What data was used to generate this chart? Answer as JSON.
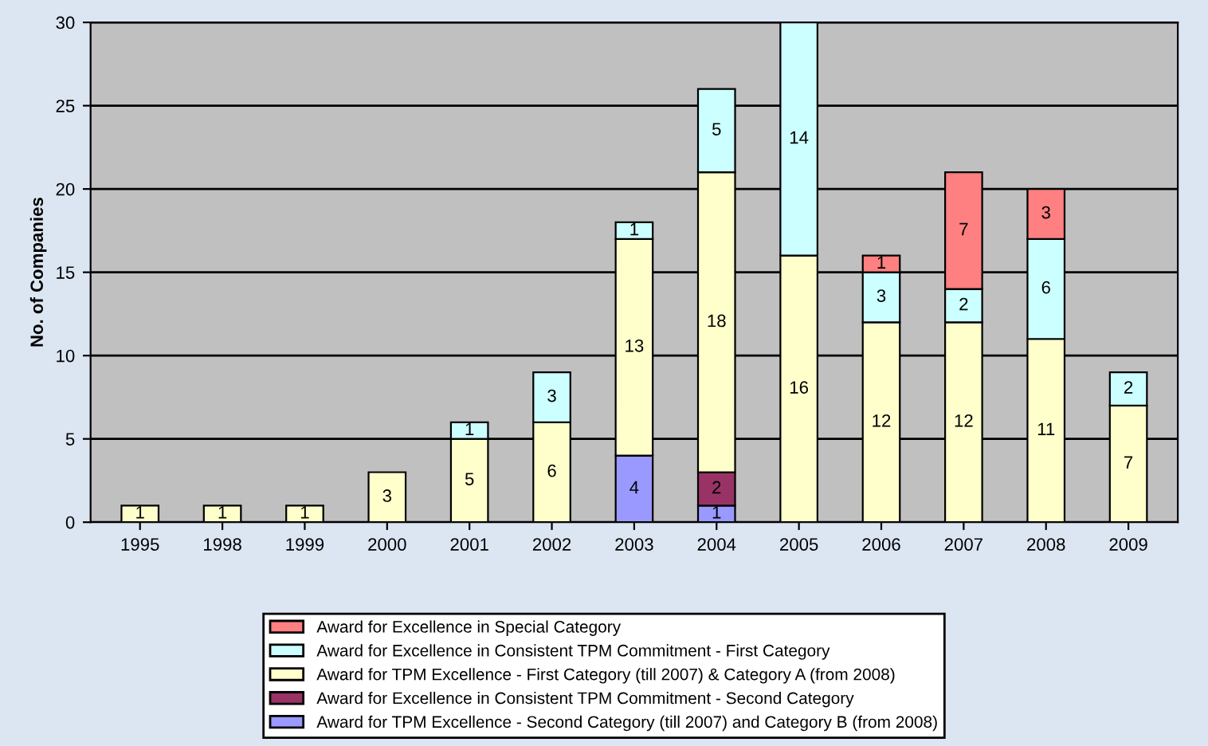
{
  "chart_data": {
    "type": "bar",
    "stacked": true,
    "ylabel": "No. of Companies",
    "categories": [
      "1995",
      "1998",
      "1999",
      "2000",
      "2001",
      "2002",
      "2003",
      "2004",
      "2005",
      "2006",
      "2007",
      "2008",
      "2009"
    ],
    "series": [
      {
        "name": "Award for TPM Excellence - Second Category (till 2007) and Category B (from 2008)",
        "color": "#9999ff",
        "values": [
          null,
          null,
          null,
          null,
          null,
          null,
          4,
          1,
          null,
          null,
          null,
          null,
          null
        ]
      },
      {
        "name": "Award for Excellence in Consistent TPM Commitment - Second Category",
        "color": "#993366",
        "values": [
          null,
          null,
          null,
          null,
          null,
          null,
          null,
          2,
          null,
          null,
          null,
          null,
          null
        ]
      },
      {
        "name": "Award for TPM Excellence - First Category (till 2007) & Category A (from 2008)",
        "color": "#ffffcc",
        "values": [
          1,
          1,
          1,
          3,
          5,
          6,
          13,
          18,
          16,
          12,
          12,
          11,
          7
        ]
      },
      {
        "name": "Award for Excellence in Consistent TPM Commitment - First Category",
        "color": "#ccffff",
        "values": [
          null,
          null,
          null,
          null,
          1,
          3,
          1,
          5,
          14,
          3,
          2,
          6,
          2
        ]
      },
      {
        "name": "Award for Excellence in Special Category",
        "color": "#ff8080",
        "values": [
          null,
          null,
          null,
          null,
          null,
          null,
          null,
          null,
          null,
          1,
          7,
          3,
          null
        ]
      }
    ],
    "ylim": [
      0,
      30
    ],
    "yticks": [
      0,
      5,
      10,
      15,
      20,
      25,
      30
    ],
    "grid": "y",
    "legend": "bottom",
    "data_labels": true
  }
}
